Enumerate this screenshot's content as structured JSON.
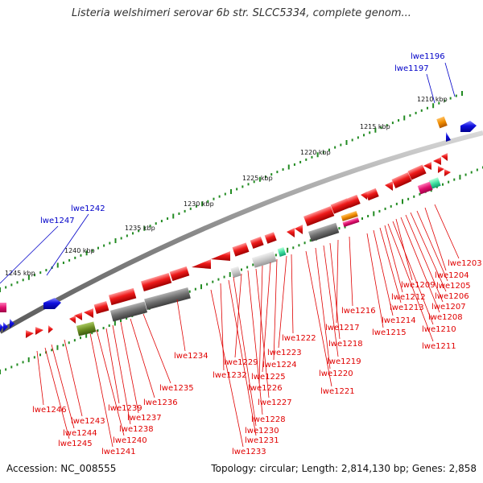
{
  "header": {
    "title": "Listeria welshimeri serovar 6b str. SLCC5334, complete genom..."
  },
  "footer": {
    "accession": "Accession: NC_008555",
    "topology": "Topology: circular; Length: 2,814,130 bp; Genes: 2,858"
  },
  "colors": {
    "backbone": "#8a8a8a",
    "gene_red": "#e81010",
    "gene_blue": "#1010e0",
    "label_red": "#e00000",
    "label_blue": "#0000c8",
    "tick_green": "#228b22",
    "gray_dark": "#6e6e6e",
    "gray_light": "#c8c8c8",
    "orange": "#f08c00",
    "magenta": "#e0106e",
    "teal": "#40e0a0",
    "olive": "#6b8e23"
  },
  "scale": {
    "ticks": [
      {
        "label": "1210 kbp"
      },
      {
        "label": "1215 kbp"
      },
      {
        "label": "1220 kbp"
      },
      {
        "label": "1225 kbp"
      },
      {
        "label": "1230 kbp"
      },
      {
        "label": "1235 kbp"
      },
      {
        "label": "1240 kbp"
      },
      {
        "label": "1245 kbp"
      }
    ]
  },
  "labels": {
    "blue": [
      {
        "text": "lwe1196"
      },
      {
        "text": "lwe1197"
      },
      {
        "text": "lwe1242"
      },
      {
        "text": "lwe1247"
      }
    ],
    "red": [
      {
        "text": "lwe1203"
      },
      {
        "text": "lwe1204"
      },
      {
        "text": "lwe1205"
      },
      {
        "text": "lwe1206"
      },
      {
        "text": "lwe1207"
      },
      {
        "text": "lwe1208"
      },
      {
        "text": "lwe1209"
      },
      {
        "text": "lwe1210"
      },
      {
        "text": "lwe1211"
      },
      {
        "text": "lwe1212"
      },
      {
        "text": "lwe1213"
      },
      {
        "text": "lwe1214"
      },
      {
        "text": "lwe1215"
      },
      {
        "text": "lwe1216"
      },
      {
        "text": "lwe1217"
      },
      {
        "text": "lwe1218"
      },
      {
        "text": "lwe1219"
      },
      {
        "text": "lwe1220"
      },
      {
        "text": "lwe1221"
      },
      {
        "text": "lwe1222"
      },
      {
        "text": "lwe1223"
      },
      {
        "text": "lwe1224"
      },
      {
        "text": "lwe1225"
      },
      {
        "text": "lwe1226"
      },
      {
        "text": "lwe1227"
      },
      {
        "text": "lwe1228"
      },
      {
        "text": "lwe1229"
      },
      {
        "text": "lwe1230"
      },
      {
        "text": "lwe1231"
      },
      {
        "text": "lwe1232"
      },
      {
        "text": "lwe1233"
      },
      {
        "text": "lwe1234"
      },
      {
        "text": "lwe1235"
      },
      {
        "text": "lwe1236"
      },
      {
        "text": "lwe1237"
      },
      {
        "text": "lwe1238"
      },
      {
        "text": "lwe1239"
      },
      {
        "text": "lwe1240"
      },
      {
        "text": "lwe1241"
      },
      {
        "text": "lwe1243"
      },
      {
        "text": "lwe1244"
      },
      {
        "text": "lwe1245"
      },
      {
        "text": "lwe1246"
      }
    ]
  }
}
